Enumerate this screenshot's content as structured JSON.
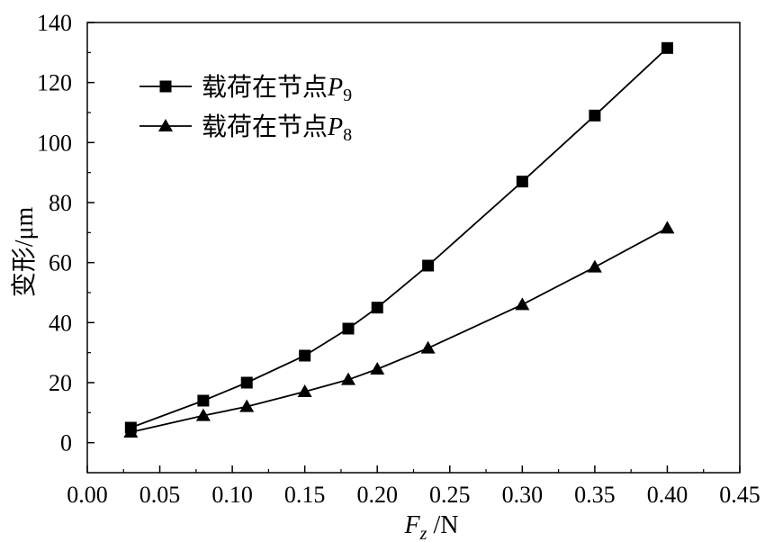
{
  "chart_data": {
    "type": "line",
    "xlabel": {
      "main": "F",
      "sub": "z",
      "unit": " /N"
    },
    "ylabel": "变形/μm",
    "xlim": [
      0.0,
      0.45
    ],
    "ylim": [
      -10,
      140
    ],
    "x_ticks": [
      "0.00",
      "0.05",
      "0.10",
      "0.15",
      "0.20",
      "0.25",
      "0.30",
      "0.35",
      "0.40",
      "0.45"
    ],
    "y_ticks": [
      "0",
      "20",
      "40",
      "60",
      "80",
      "100",
      "120",
      "140"
    ],
    "grid": false,
    "legend_position": "top-left",
    "series": [
      {
        "name": "载荷在节点P9",
        "legend": {
          "text": "载荷在节点",
          "var": "P",
          "sub": "9"
        },
        "marker": "square",
        "color": "#000000",
        "x": [
          0.03,
          0.08,
          0.11,
          0.15,
          0.18,
          0.2,
          0.235,
          0.3,
          0.35,
          0.4
        ],
        "y": [
          5,
          14,
          20,
          29,
          38,
          45,
          59,
          87,
          109,
          131.5
        ]
      },
      {
        "name": "载荷在节点P8",
        "legend": {
          "text": "载荷在节点",
          "var": "P",
          "sub": "8"
        },
        "marker": "triangle",
        "color": "#000000",
        "x": [
          0.03,
          0.08,
          0.11,
          0.15,
          0.18,
          0.2,
          0.235,
          0.3,
          0.35,
          0.4
        ],
        "y": [
          3.5,
          9,
          12,
          17,
          21,
          24.5,
          31.5,
          46,
          58.5,
          71.5
        ]
      }
    ]
  }
}
